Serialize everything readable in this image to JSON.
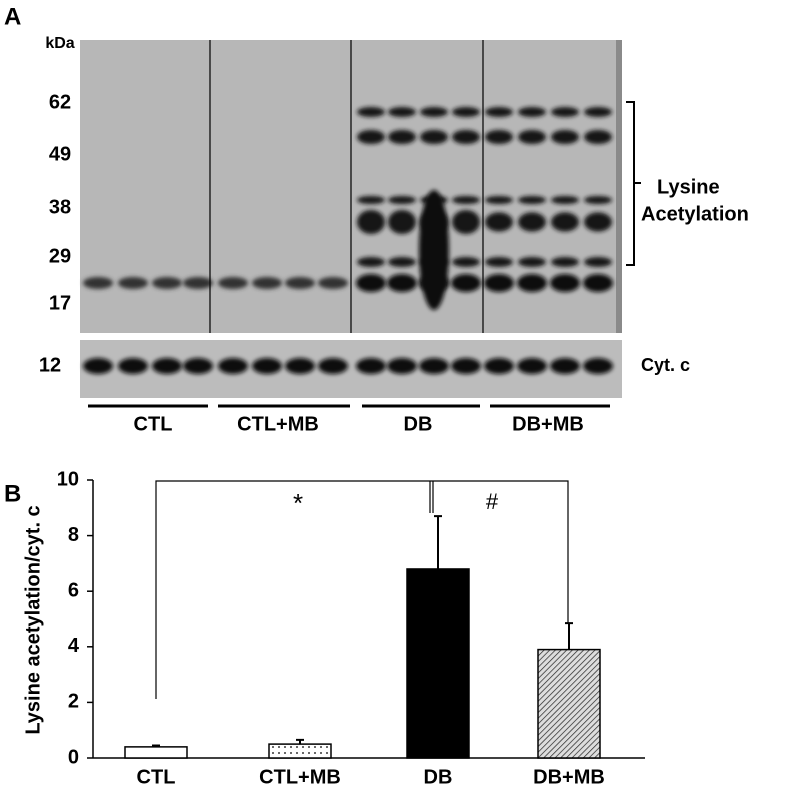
{
  "panel_a": {
    "label": "A",
    "unit": "kDa",
    "markers": [
      "62",
      "49",
      "38",
      "29",
      "17"
    ],
    "loading_marker": "12",
    "bracket_label": [
      "Lysine",
      "Acetylation"
    ],
    "loading_label": "Cyt. c",
    "groups": [
      "CTL",
      "CTL+MB",
      "DB",
      "DB+MB"
    ]
  },
  "panel_b": {
    "label": "B",
    "annotations": [
      "*",
      "#"
    ]
  },
  "chart_data": {
    "type": "bar",
    "ylabel": "Lysine acetylation/cyt. c",
    "categories": [
      "CTL",
      "CTL+MB",
      "DB",
      "DB+MB"
    ],
    "values": [
      0.4,
      0.5,
      6.8,
      3.9
    ],
    "errors": [
      0.05,
      0.15,
      1.9,
      0.95
    ],
    "fills": [
      "white",
      "dots",
      "black",
      "hatch"
    ],
    "ylim": [
      0,
      10
    ],
    "yticks": [
      0,
      2,
      4,
      6,
      8,
      10
    ]
  }
}
